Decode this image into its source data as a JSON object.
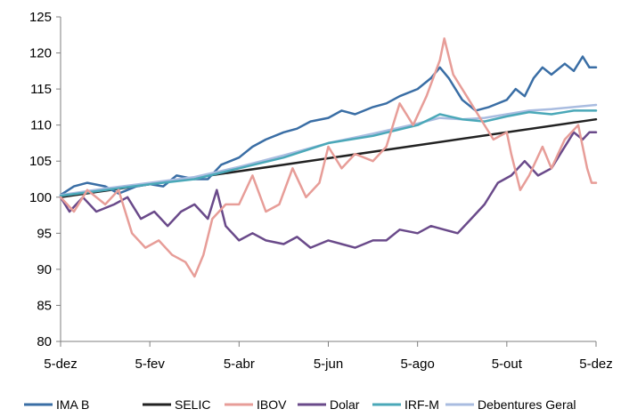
{
  "chart_data": {
    "type": "line",
    "title": "",
    "xlabel": "",
    "ylabel": "",
    "ylim": [
      80,
      125
    ],
    "yticks": [
      "80",
      "85",
      "90",
      "95",
      "100",
      "105",
      "110",
      "115",
      "120",
      "125"
    ],
    "xticks": [
      "5-dez",
      "5-fev",
      "5-abr",
      "5-jun",
      "5-ago",
      "5-out",
      "5-dez"
    ],
    "x_index_range": [
      0,
      12
    ],
    "grid": false,
    "legend_position": "bottom",
    "series": [
      {
        "name": "IMA B",
        "color": "#3a6ea5",
        "points": [
          [
            0,
            100.3
          ],
          [
            0.3,
            101.5
          ],
          [
            0.6,
            102
          ],
          [
            1.0,
            101.5
          ],
          [
            1.3,
            100.5
          ],
          [
            1.7,
            101.5
          ],
          [
            2.0,
            101.8
          ],
          [
            2.3,
            101.5
          ],
          [
            2.6,
            103
          ],
          [
            3.0,
            102.5
          ],
          [
            3.3,
            102.5
          ],
          [
            3.6,
            104.5
          ],
          [
            4.0,
            105.5
          ],
          [
            4.3,
            107
          ],
          [
            4.6,
            108
          ],
          [
            5.0,
            109
          ],
          [
            5.3,
            109.5
          ],
          [
            5.6,
            110.5
          ],
          [
            6.0,
            111
          ],
          [
            6.3,
            112
          ],
          [
            6.6,
            111.5
          ],
          [
            7.0,
            112.5
          ],
          [
            7.3,
            113
          ],
          [
            7.6,
            114
          ],
          [
            8.0,
            115
          ],
          [
            8.3,
            116.5
          ],
          [
            8.5,
            118
          ],
          [
            8.7,
            116.5
          ],
          [
            9.0,
            113.5
          ],
          [
            9.3,
            112
          ],
          [
            9.6,
            112.5
          ],
          [
            10.0,
            113.5
          ],
          [
            10.2,
            115
          ],
          [
            10.4,
            114
          ],
          [
            10.6,
            116.5
          ],
          [
            10.8,
            118
          ],
          [
            11.0,
            117
          ],
          [
            11.3,
            118.5
          ],
          [
            11.5,
            117.5
          ],
          [
            11.7,
            119.5
          ],
          [
            11.85,
            118
          ],
          [
            12.0,
            118
          ]
        ]
      },
      {
        "name": "SELIC",
        "color": "#222222",
        "points": [
          [
            0,
            100
          ],
          [
            12,
            110.8
          ]
        ]
      },
      {
        "name": "IBOV",
        "color": "#e79d98",
        "points": [
          [
            0,
            100
          ],
          [
            0.3,
            98
          ],
          [
            0.6,
            101
          ],
          [
            1.0,
            99
          ],
          [
            1.3,
            101
          ],
          [
            1.6,
            95
          ],
          [
            1.9,
            93
          ],
          [
            2.2,
            94
          ],
          [
            2.5,
            92
          ],
          [
            2.8,
            91
          ],
          [
            3.0,
            89
          ],
          [
            3.2,
            92
          ],
          [
            3.4,
            97
          ],
          [
            3.7,
            99
          ],
          [
            4.0,
            99
          ],
          [
            4.3,
            103
          ],
          [
            4.6,
            98
          ],
          [
            4.9,
            99
          ],
          [
            5.2,
            104
          ],
          [
            5.5,
            100
          ],
          [
            5.8,
            102
          ],
          [
            6.0,
            107
          ],
          [
            6.3,
            104
          ],
          [
            6.6,
            106
          ],
          [
            7.0,
            105
          ],
          [
            7.3,
            107
          ],
          [
            7.6,
            113
          ],
          [
            7.9,
            110
          ],
          [
            8.2,
            114
          ],
          [
            8.5,
            119
          ],
          [
            8.6,
            122
          ],
          [
            8.8,
            117
          ],
          [
            9.1,
            114
          ],
          [
            9.4,
            111
          ],
          [
            9.7,
            108
          ],
          [
            10.0,
            109
          ],
          [
            10.1,
            106
          ],
          [
            10.3,
            101
          ],
          [
            10.5,
            103
          ],
          [
            10.8,
            107
          ],
          [
            11.0,
            104
          ],
          [
            11.3,
            108
          ],
          [
            11.6,
            110
          ],
          [
            11.8,
            104
          ],
          [
            11.9,
            102
          ],
          [
            12.0,
            102
          ]
        ]
      },
      {
        "name": "Dolar",
        "color": "#6a4a8a",
        "points": [
          [
            0,
            100
          ],
          [
            0.2,
            98
          ],
          [
            0.5,
            100
          ],
          [
            0.8,
            98
          ],
          [
            1.2,
            99
          ],
          [
            1.5,
            100
          ],
          [
            1.8,
            97
          ],
          [
            2.1,
            98
          ],
          [
            2.4,
            96
          ],
          [
            2.7,
            98
          ],
          [
            3.0,
            99
          ],
          [
            3.3,
            97
          ],
          [
            3.5,
            101
          ],
          [
            3.7,
            96
          ],
          [
            4.0,
            94
          ],
          [
            4.3,
            95
          ],
          [
            4.6,
            94
          ],
          [
            5.0,
            93.5
          ],
          [
            5.3,
            94.5
          ],
          [
            5.6,
            93
          ],
          [
            6.0,
            94
          ],
          [
            6.3,
            93.5
          ],
          [
            6.6,
            93
          ],
          [
            7.0,
            94
          ],
          [
            7.3,
            94
          ],
          [
            7.6,
            95.5
          ],
          [
            8.0,
            95
          ],
          [
            8.3,
            96
          ],
          [
            8.6,
            95.5
          ],
          [
            8.9,
            95
          ],
          [
            9.2,
            97
          ],
          [
            9.5,
            99
          ],
          [
            9.8,
            102
          ],
          [
            10.1,
            103
          ],
          [
            10.4,
            105
          ],
          [
            10.7,
            103
          ],
          [
            11.0,
            104
          ],
          [
            11.3,
            107
          ],
          [
            11.5,
            109
          ],
          [
            11.7,
            108
          ],
          [
            11.85,
            109
          ],
          [
            12.0,
            109
          ]
        ]
      },
      {
        "name": "IRF-M",
        "color": "#4aa8b8",
        "points": [
          [
            0,
            100.2
          ],
          [
            1,
            101
          ],
          [
            2,
            101.8
          ],
          [
            3,
            102.5
          ],
          [
            4,
            104
          ],
          [
            5,
            105.5
          ],
          [
            6,
            107.5
          ],
          [
            7,
            108.5
          ],
          [
            8,
            110
          ],
          [
            8.5,
            111.5
          ],
          [
            9,
            110.8
          ],
          [
            9.5,
            110.5
          ],
          [
            10,
            111.2
          ],
          [
            10.5,
            111.8
          ],
          [
            11,
            111.5
          ],
          [
            11.5,
            112
          ],
          [
            12,
            112
          ]
        ]
      },
      {
        "name": "Debentures Geral",
        "color": "#a9bce0",
        "points": [
          [
            0,
            100.3
          ],
          [
            1,
            101.2
          ],
          [
            2,
            102
          ],
          [
            3,
            102.8
          ],
          [
            4,
            104.2
          ],
          [
            5,
            105.8
          ],
          [
            6,
            107.5
          ],
          [
            7,
            108.8
          ],
          [
            8,
            110.2
          ],
          [
            8.5,
            111
          ],
          [
            9,
            110.8
          ],
          [
            9.5,
            111
          ],
          [
            10,
            111.5
          ],
          [
            10.5,
            112
          ],
          [
            11,
            112.2
          ],
          [
            11.5,
            112.5
          ],
          [
            12,
            112.8
          ]
        ]
      }
    ]
  }
}
